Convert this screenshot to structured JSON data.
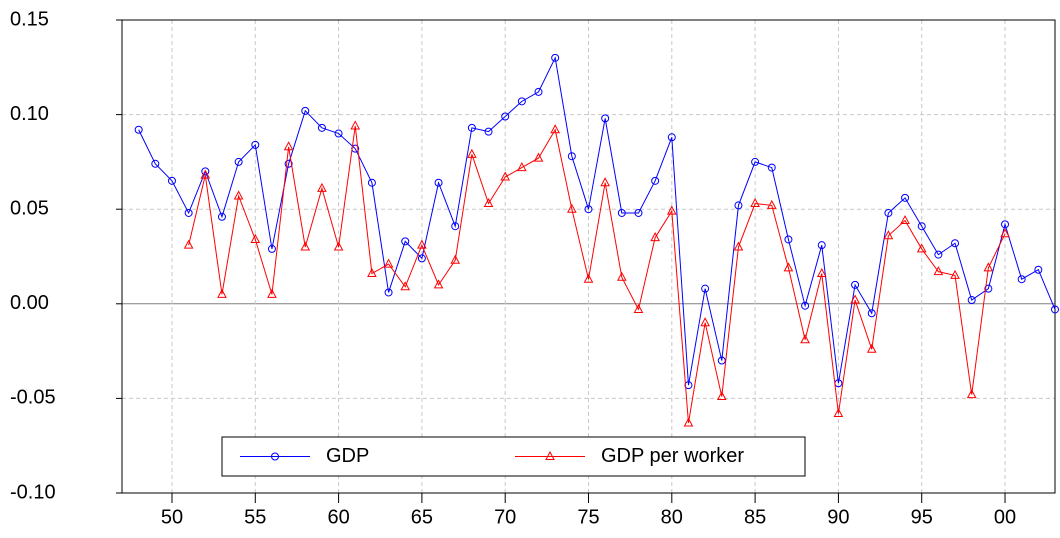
{
  "chart_data": {
    "type": "line",
    "x": [
      1948,
      1949,
      1950,
      1951,
      1952,
      1953,
      1954,
      1955,
      1956,
      1957,
      1958,
      1959,
      1960,
      1961,
      1962,
      1963,
      1964,
      1965,
      1966,
      1967,
      1968,
      1969,
      1970,
      1971,
      1972,
      1973,
      1974,
      1975,
      1976,
      1977,
      1978,
      1979,
      1980,
      1981,
      1982,
      1983,
      1984,
      1985,
      1986,
      1987,
      1988,
      1989,
      1990,
      1991,
      1992,
      1993,
      1994,
      1995,
      1996,
      1997,
      1998,
      1999,
      2000,
      2001,
      2002,
      2003
    ],
    "series": [
      {
        "name": "GDP",
        "color": "#0000ff",
        "marker": "circle",
        "values": [
          0.092,
          0.074,
          0.065,
          0.048,
          0.07,
          0.046,
          0.075,
          0.084,
          0.029,
          0.074,
          0.102,
          0.093,
          0.09,
          0.082,
          0.064,
          0.006,
          0.033,
          0.024,
          0.064,
          0.041,
          0.093,
          0.091,
          0.099,
          0.107,
          0.112,
          0.13,
          0.078,
          0.05,
          0.098,
          0.048,
          0.048,
          0.065,
          0.088,
          -0.043,
          0.008,
          -0.03,
          0.052,
          0.075,
          0.072,
          0.034,
          -0.001,
          0.031,
          -0.042,
          0.01,
          -0.005,
          0.048,
          0.056,
          0.041,
          0.026,
          0.032,
          0.002,
          0.008,
          0.042,
          0.013,
          0.018,
          -0.003
        ]
      },
      {
        "name": "GDP per worker",
        "color": "#ff0000",
        "marker": "triangle",
        "values": [
          null,
          null,
          null,
          0.031,
          0.068,
          0.005,
          0.057,
          0.034,
          0.005,
          0.083,
          0.03,
          0.061,
          0.03,
          0.094,
          0.016,
          0.021,
          0.009,
          0.031,
          0.01,
          0.023,
          0.079,
          0.053,
          0.067,
          0.072,
          0.077,
          0.092,
          0.05,
          0.013,
          0.064,
          0.014,
          -0.003,
          0.035,
          0.049,
          -0.063,
          -0.01,
          -0.049,
          0.03,
          0.053,
          0.052,
          0.019,
          -0.019,
          0.016,
          -0.058,
          0.002,
          -0.024,
          0.036,
          0.044,
          0.029,
          0.017,
          0.015,
          -0.048,
          0.019,
          0.037,
          null,
          null,
          null
        ]
      }
    ],
    "xlim": [
      1947,
      2003
    ],
    "xticks": [
      {
        "value": 1950,
        "label": "50"
      },
      {
        "value": 1955,
        "label": "55"
      },
      {
        "value": 1960,
        "label": "60"
      },
      {
        "value": 1965,
        "label": "65"
      },
      {
        "value": 1970,
        "label": "70"
      },
      {
        "value": 1975,
        "label": "75"
      },
      {
        "value": 1980,
        "label": "80"
      },
      {
        "value": 1985,
        "label": "85"
      },
      {
        "value": 1990,
        "label": "90"
      },
      {
        "value": 1995,
        "label": "95"
      },
      {
        "value": 2000,
        "label": "00"
      }
    ],
    "ylim": [
      -0.1,
      0.15
    ],
    "yticks": [
      {
        "value": -0.1,
        "label": "-0.10"
      },
      {
        "value": -0.05,
        "label": "-0.05"
      },
      {
        "value": 0,
        "label": "0.00"
      },
      {
        "value": 0.05,
        "label": "0.05"
      },
      {
        "value": 0.1,
        "label": "0.10"
      },
      {
        "value": 0.15,
        "label": "0.15"
      }
    ],
    "grid": true,
    "legend": "lower center"
  }
}
